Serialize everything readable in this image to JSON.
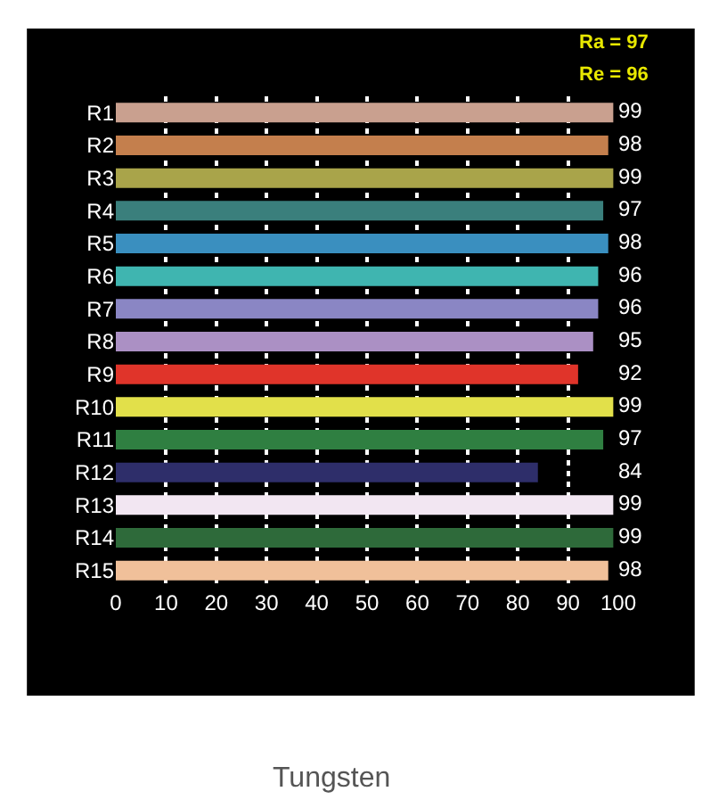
{
  "chart_data": {
    "type": "bar",
    "orientation": "horizontal",
    "title": "Tungsten",
    "annotations": [
      "Ra = 97",
      "Re = 96"
    ],
    "categories": [
      "R1",
      "R2",
      "R3",
      "R4",
      "R5",
      "R6",
      "R7",
      "R8",
      "R9",
      "R10",
      "R11",
      "R12",
      "R13",
      "R14",
      "R15"
    ],
    "values": [
      99,
      98,
      99,
      97,
      98,
      96,
      96,
      95,
      92,
      99,
      97,
      84,
      99,
      99,
      98
    ],
    "colors": [
      "#c9a08f",
      "#c47f4d",
      "#a9a44a",
      "#3a7f7c",
      "#3a8fbf",
      "#3fb5b0",
      "#8a86c4",
      "#ab90c4",
      "#e0342a",
      "#e2e04a",
      "#2f7f41",
      "#2e2e6a",
      "#f2e6f2",
      "#2e6a3a",
      "#f0c09a"
    ],
    "xlim": [
      0,
      100
    ],
    "xticks": [
      0,
      10,
      20,
      30,
      40,
      50,
      60,
      70,
      80,
      90,
      100
    ],
    "grid": "x",
    "line_style": "dotted",
    "data_labels": true
  }
}
